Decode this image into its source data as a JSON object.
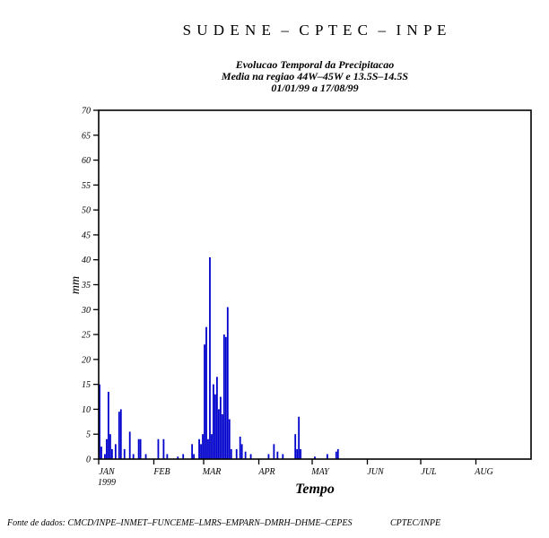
{
  "header": {
    "title": "S U D E N E  –  C P T E C  –  I N P E"
  },
  "chart_data": {
    "type": "bar",
    "title": "Evolucao Temporal da Precipitacao",
    "subtitle": "Media na regiao 44W–45W  e 13.5S–14.5S",
    "period": "01/01/99 a 17/08/99",
    "xlabel": "Tempo",
    "ylabel": "mm",
    "ylim": [
      0,
      70
    ],
    "ytick_step": 5,
    "grid": false,
    "legend": "none",
    "bar_color": "#0000cc",
    "x_unit": "day index from 01 Jan 1999 (day 0 = Jan 1)",
    "x_domain_days": [
      0,
      243
    ],
    "xticks": [
      {
        "day": 0,
        "label": "JAN",
        "year": "1999"
      },
      {
        "day": 31,
        "label": "FEB"
      },
      {
        "day": 59,
        "label": "MAR"
      },
      {
        "day": 90,
        "label": "APR"
      },
      {
        "day": 120,
        "label": "MAY"
      },
      {
        "day": 151,
        "label": "JUN"
      },
      {
        "day": 181,
        "label": "JUL"
      },
      {
        "day": 212,
        "label": "AUG"
      }
    ],
    "points": [
      [
        0,
        15
      ],
      [
        1,
        2.5
      ],
      [
        3,
        1
      ],
      [
        4,
        4
      ],
      [
        5,
        13.5
      ],
      [
        6,
        5
      ],
      [
        7,
        2
      ],
      [
        9,
        3
      ],
      [
        11,
        9.5
      ],
      [
        12,
        10
      ],
      [
        14,
        2
      ],
      [
        17,
        5.5
      ],
      [
        19,
        1
      ],
      [
        22,
        4
      ],
      [
        23,
        4
      ],
      [
        26,
        1
      ],
      [
        33,
        4
      ],
      [
        36,
        4
      ],
      [
        38,
        1
      ],
      [
        44,
        0.5
      ],
      [
        47,
        1
      ],
      [
        52,
        3
      ],
      [
        53,
        1
      ],
      [
        56,
        4
      ],
      [
        57,
        3
      ],
      [
        58,
        5
      ],
      [
        59,
        23
      ],
      [
        60,
        26.5
      ],
      [
        61,
        4
      ],
      [
        62,
        40.5
      ],
      [
        63,
        5
      ],
      [
        64,
        15
      ],
      [
        65,
        13
      ],
      [
        66,
        16.5
      ],
      [
        67,
        10
      ],
      [
        68,
        12.5
      ],
      [
        69,
        9
      ],
      [
        70,
        25
      ],
      [
        71,
        24.5
      ],
      [
        72,
        30.5
      ],
      [
        73,
        8
      ],
      [
        74,
        2
      ],
      [
        77,
        2
      ],
      [
        79,
        4.5
      ],
      [
        80,
        3
      ],
      [
        82,
        1.5
      ],
      [
        85,
        1
      ],
      [
        95,
        1
      ],
      [
        98,
        3
      ],
      [
        100,
        1.5
      ],
      [
        103,
        1
      ],
      [
        110,
        5
      ],
      [
        111,
        2
      ],
      [
        112,
        8.5
      ],
      [
        113,
        2
      ],
      [
        121,
        0.5
      ],
      [
        128,
        1
      ],
      [
        133,
        1.5
      ],
      [
        134,
        2
      ]
    ]
  },
  "footer": {
    "source": "Fonte de dados: CMCD/INPE–INMET–FUNCEME–LMRS–EMPARN–DMRH–DHME–CEPES",
    "credit": "CPTEC/INPE"
  }
}
